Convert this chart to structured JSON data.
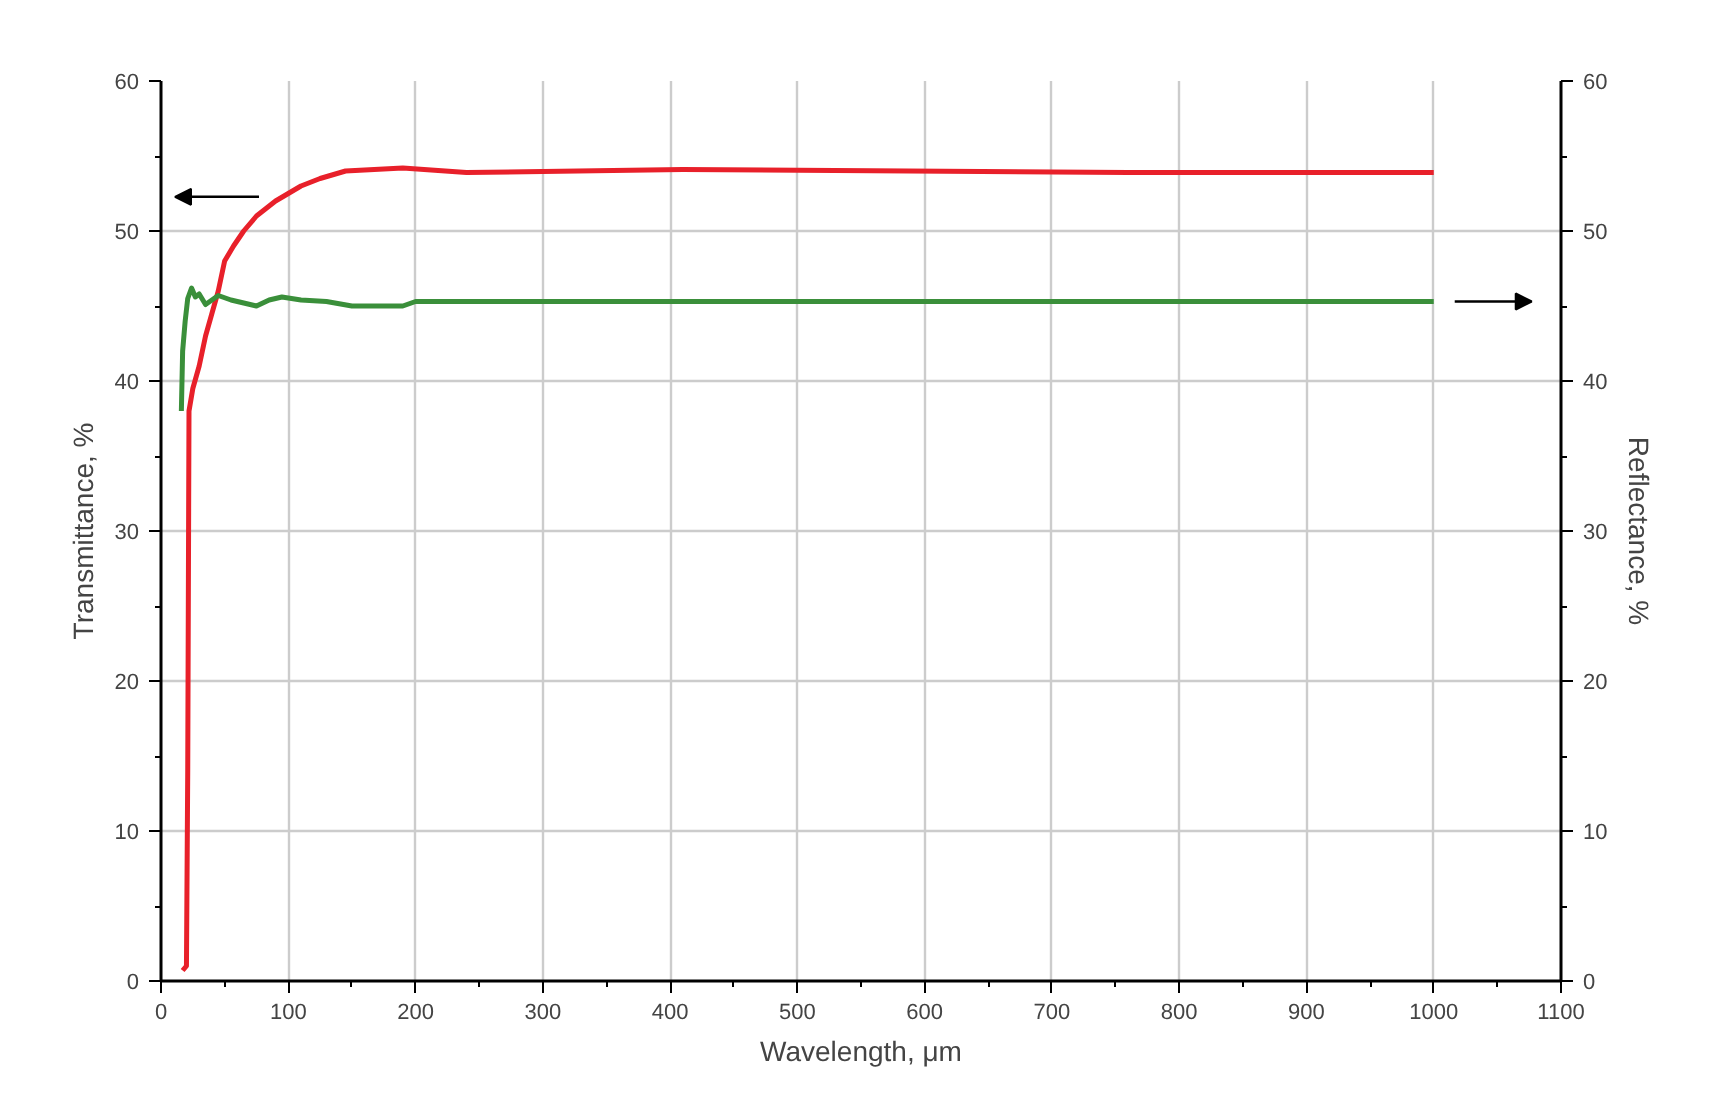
{
  "chart_data": {
    "type": "line",
    "xlabel": "Wavelength, μm",
    "ylabel": "Transmittance, %",
    "y2label": "Reflectance, %",
    "xlim": [
      0,
      1100
    ],
    "xticks": [
      0,
      100,
      200,
      300,
      400,
      500,
      600,
      700,
      800,
      900,
      1000,
      1100
    ],
    "ylim": [
      0,
      60
    ],
    "yticks": [
      0,
      10,
      20,
      30,
      40,
      50,
      60
    ],
    "y2lim": [
      0,
      60
    ],
    "y2ticks": [
      0,
      10,
      20,
      30,
      40,
      50,
      60
    ],
    "grid": true,
    "marker": "none",
    "line_style": "solid",
    "series": [
      {
        "color": "#e8202a",
        "axis": "y",
        "x": [
          17,
          20,
          21,
          22,
          25,
          30,
          35,
          40,
          45,
          50,
          57,
          65,
          75,
          90,
          100,
          110,
          125,
          145,
          190,
          240,
          410,
          760,
          1000
        ],
        "values": [
          0.7,
          1,
          14,
          38,
          39.5,
          41,
          43,
          44.5,
          46,
          48,
          49,
          50,
          51,
          52,
          52.5,
          53,
          53.5,
          54,
          54.2,
          53.9,
          54.1,
          53.9,
          53.9
        ]
      },
      {
        "color": "#3a8f3a",
        "axis": "y2",
        "x": [
          16,
          17,
          19,
          21,
          24,
          27,
          30,
          35,
          40,
          45,
          55,
          65,
          75,
          85,
          95,
          110,
          130,
          150,
          190,
          200,
          500,
          1000
        ],
        "values": [
          38,
          42,
          44,
          45.5,
          46.2,
          45.6,
          45.8,
          45.1,
          45.4,
          45.7,
          45.4,
          45.2,
          45.0,
          45.4,
          45.6,
          45.4,
          45.3,
          45.0,
          45.0,
          45.3,
          45.3,
          45.3
        ]
      }
    ]
  }
}
